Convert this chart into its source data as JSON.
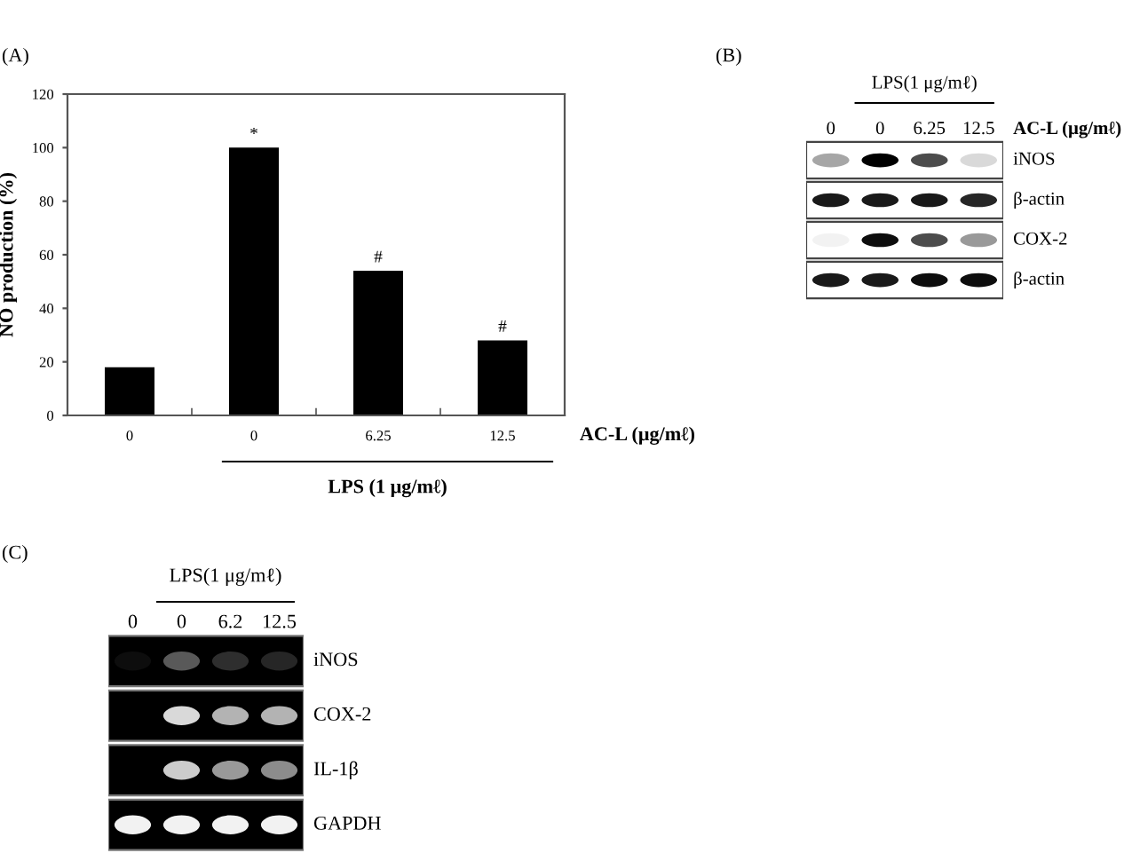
{
  "chart_data": [
    {
      "type": "bar",
      "title": "(A)",
      "categories": [
        "0",
        "0",
        "6.25",
        "12.5"
      ],
      "values": [
        18,
        100,
        54,
        28
      ],
      "color": "#000000",
      "value_labels": [
        null,
        "*",
        "#",
        "#"
      ],
      "ylim": [
        0,
        120
      ],
      "yticks": [
        0,
        20,
        40,
        60,
        80,
        100,
        120
      ],
      "ylabel": "NO production (%)",
      "xlabel": "AC-L (μg/mℓ)",
      "annotations": [
        "LPS (1 μg/mℓ)"
      ]
    },
    {
      "type": "other",
      "title": "(B)",
      "categories": [
        "0",
        "0",
        "6.25",
        "12.5"
      ],
      "y_categories": [
        "iNOS",
        "β-actin",
        "COX-2",
        "β-actin"
      ],
      "xlabel": "AC-L (μg/mℓ)",
      "annotations": [
        "LPS(1 μg/mℓ)"
      ]
    },
    {
      "type": "other",
      "title": "(C)",
      "categories": [
        "0",
        "0",
        "6.2",
        "12.5"
      ],
      "y_categories": [
        "iNOS",
        "COX-2",
        "IL-1β",
        "GAPDH"
      ],
      "annotations": [
        "LPS(1 μg/mℓ)"
      ]
    }
  ]
}
